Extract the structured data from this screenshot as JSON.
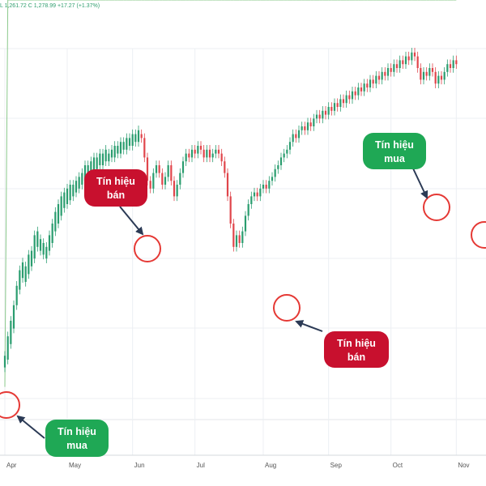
{
  "header": {
    "ohlc_text": "L 1,261.72  C 1,278.99  +17.27 (+1.37%)"
  },
  "colors": {
    "up": "#2a9d6f",
    "down": "#e0454b",
    "band_up_fill": "#e6f5e6",
    "band_up_line": "#8bc98b",
    "band_down_fill": "#fde4e4",
    "band_down_line": "#f2a7a7",
    "sell_callout": "#c8102e",
    "buy_callout": "#1fa855",
    "circle": "#e53935",
    "arrow": "#2b3a55"
  },
  "chart_data": {
    "type": "candlestick",
    "title": "",
    "xlabel": "",
    "ylabel": "",
    "ylim": [
      0,
      100
    ],
    "x_ticks": [
      {
        "label": "Apr",
        "x": 0
      },
      {
        "label": "May",
        "x": 21
      },
      {
        "label": "Jun",
        "x": 43
      },
      {
        "label": "Jul",
        "x": 64
      },
      {
        "label": "Aug",
        "x": 87
      },
      {
        "label": "Sep",
        "x": 109
      },
      {
        "label": "Oct",
        "x": 130
      },
      {
        "label": "Nov",
        "x": 152
      }
    ],
    "x_range": [
      0,
      162
    ],
    "candles": [
      [
        0,
        18,
        21
      ],
      [
        1,
        20,
        26
      ],
      [
        2,
        24,
        30
      ],
      [
        3,
        28,
        34
      ],
      [
        4,
        34,
        39
      ],
      [
        5,
        38,
        43
      ],
      [
        6,
        41,
        45
      ],
      [
        7,
        40,
        44
      ],
      [
        8,
        42,
        47
      ],
      [
        9,
        44,
        48
      ],
      [
        10,
        46,
        52
      ],
      [
        11,
        49,
        53
      ],
      [
        12,
        48,
        51
      ],
      [
        13,
        47,
        50
      ],
      [
        14,
        46,
        49
      ],
      [
        15,
        48,
        52
      ],
      [
        16,
        50,
        55
      ],
      [
        17,
        53,
        58
      ],
      [
        18,
        55,
        60
      ],
      [
        19,
        57,
        62
      ],
      [
        20,
        59,
        63
      ],
      [
        21,
        60,
        64
      ],
      [
        22,
        61,
        65
      ],
      [
        23,
        62,
        65
      ],
      [
        24,
        63,
        66
      ],
      [
        25,
        64,
        67
      ],
      [
        26,
        65,
        68
      ],
      [
        27,
        66,
        70
      ],
      [
        28,
        67,
        70
      ],
      [
        29,
        67,
        71
      ],
      [
        30,
        68,
        72
      ],
      [
        31,
        69,
        72
      ],
      [
        32,
        70,
        73
      ],
      [
        33,
        70,
        73
      ],
      [
        34,
        71,
        74
      ],
      [
        35,
        71,
        73
      ],
      [
        36,
        72,
        74
      ],
      [
        37,
        72,
        75
      ],
      [
        38,
        73,
        75
      ],
      [
        39,
        73,
        76
      ],
      [
        40,
        74,
        76
      ],
      [
        41,
        74,
        77
      ],
      [
        42,
        75,
        77
      ],
      [
        43,
        75,
        78
      ],
      [
        44,
        76,
        78
      ],
      [
        45,
        76,
        79
      ],
      [
        46,
        78,
        77
      ],
      [
        47,
        77,
        72
      ],
      [
        48,
        72,
        66
      ],
      [
        49,
        66,
        64
      ],
      [
        50,
        64,
        68
      ],
      [
        51,
        68,
        70
      ],
      [
        52,
        70,
        68
      ],
      [
        53,
        68,
        65
      ],
      [
        54,
        65,
        67
      ],
      [
        55,
        67,
        70
      ],
      [
        56,
        70,
        66
      ],
      [
        57,
        66,
        62
      ],
      [
        58,
        62,
        65
      ],
      [
        59,
        65,
        68
      ],
      [
        60,
        68,
        71
      ],
      [
        61,
        71,
        73
      ],
      [
        62,
        73,
        72
      ],
      [
        63,
        72,
        74
      ],
      [
        64,
        74,
        73
      ],
      [
        65,
        73,
        75
      ],
      [
        66,
        75,
        74
      ],
      [
        67,
        74,
        72
      ],
      [
        68,
        72,
        74
      ],
      [
        69,
        74,
        72
      ],
      [
        70,
        72,
        73
      ],
      [
        71,
        73,
        74
      ],
      [
        72,
        74,
        73
      ],
      [
        73,
        73,
        71
      ],
      [
        74,
        71,
        68
      ],
      [
        75,
        68,
        62
      ],
      [
        76,
        62,
        55
      ],
      [
        77,
        55,
        49
      ],
      [
        78,
        49,
        52
      ],
      [
        79,
        52,
        50
      ],
      [
        80,
        50,
        53
      ],
      [
        81,
        53,
        57
      ],
      [
        82,
        57,
        60
      ],
      [
        83,
        60,
        62
      ],
      [
        84,
        62,
        63
      ],
      [
        85,
        63,
        62
      ],
      [
        86,
        62,
        64
      ],
      [
        87,
        64,
        65
      ],
      [
        88,
        65,
        64
      ],
      [
        89,
        64,
        66
      ],
      [
        90,
        66,
        67
      ],
      [
        91,
        67,
        69
      ],
      [
        92,
        69,
        70
      ],
      [
        93,
        70,
        72
      ],
      [
        94,
        72,
        73
      ],
      [
        95,
        73,
        74
      ],
      [
        96,
        74,
        76
      ],
      [
        97,
        76,
        78
      ],
      [
        98,
        78,
        77
      ],
      [
        99,
        77,
        79
      ],
      [
        100,
        79,
        80
      ],
      [
        101,
        80,
        79
      ],
      [
        102,
        79,
        81
      ],
      [
        103,
        81,
        80
      ],
      [
        104,
        80,
        82
      ],
      [
        105,
        82,
        83
      ],
      [
        106,
        83,
        82
      ],
      [
        107,
        82,
        84
      ],
      [
        108,
        84,
        83
      ],
      [
        109,
        83,
        85
      ],
      [
        110,
        85,
        84
      ],
      [
        111,
        84,
        86
      ],
      [
        112,
        86,
        85
      ],
      [
        113,
        85,
        87
      ],
      [
        114,
        87,
        86
      ],
      [
        115,
        86,
        88
      ],
      [
        116,
        88,
        87
      ],
      [
        117,
        87,
        89
      ],
      [
        118,
        89,
        88
      ],
      [
        119,
        88,
        90
      ],
      [
        120,
        90,
        89
      ],
      [
        121,
        89,
        91
      ],
      [
        122,
        91,
        90
      ],
      [
        123,
        90,
        92
      ],
      [
        124,
        92,
        91
      ],
      [
        125,
        91,
        93
      ],
      [
        126,
        93,
        92
      ],
      [
        127,
        92,
        94
      ],
      [
        128,
        94,
        93
      ],
      [
        129,
        93,
        95
      ],
      [
        130,
        95,
        94
      ],
      [
        131,
        94,
        96
      ],
      [
        132,
        96,
        95
      ],
      [
        133,
        95,
        97
      ],
      [
        134,
        97,
        96
      ],
      [
        135,
        96,
        98
      ],
      [
        136,
        98,
        97
      ],
      [
        137,
        97,
        99
      ],
      [
        138,
        99,
        98
      ],
      [
        139,
        98,
        95
      ],
      [
        140,
        95,
        92
      ],
      [
        141,
        92,
        94
      ],
      [
        142,
        94,
        93
      ],
      [
        143,
        93,
        95
      ],
      [
        144,
        95,
        94
      ],
      [
        145,
        94,
        91
      ],
      [
        146,
        91,
        93
      ],
      [
        147,
        93,
        92
      ],
      [
        148,
        92,
        94
      ],
      [
        149,
        94,
        96
      ],
      [
        150,
        96,
        95
      ],
      [
        151,
        95,
        97
      ],
      [
        152,
        97,
        96
      ]
    ]
  },
  "callouts": [
    {
      "kind": "sell",
      "line1": "Tín hiệu",
      "line2": "bán"
    },
    {
      "kind": "buy",
      "line1": "Tín hiệu",
      "line2": "mua"
    },
    {
      "kind": "sell",
      "line1": "Tín hiệu",
      "line2": "bán"
    },
    {
      "kind": "buy",
      "line1": "Tín hiệu",
      "line2": "mua"
    }
  ]
}
